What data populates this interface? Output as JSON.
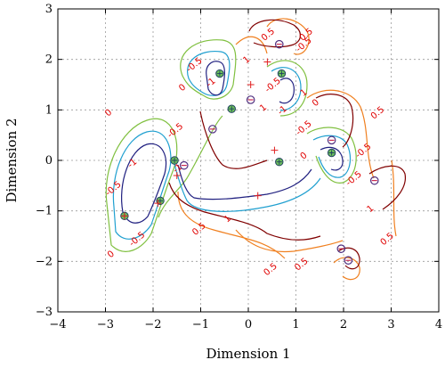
{
  "chart_data": {
    "type": "contour",
    "title": "",
    "xlabel": "Dimension 1",
    "ylabel": "Dimension 2",
    "xlim": [
      -4,
      4
    ],
    "ylim": [
      -3,
      3
    ],
    "xticks": [
      -4,
      -3,
      -2,
      -1,
      0,
      1,
      2,
      3,
      4
    ],
    "yticks": [
      -3,
      -2,
      -1,
      0,
      1,
      2,
      3
    ],
    "grid": true,
    "contour_levels": [
      {
        "level": "1",
        "color": "#800000"
      },
      {
        "level": "0.5",
        "color": "#f08020"
      },
      {
        "level": "0",
        "color": "#80c040"
      },
      {
        "level": "-0.5",
        "color": "#20a0d0"
      },
      {
        "level": "-1",
        "color": "#202080"
      }
    ],
    "contour_labels": [
      {
        "text": "0",
        "x": -2.9,
        "y": 0.9,
        "color": "#e00000"
      },
      {
        "text": "-1",
        "x": -2.4,
        "y": -0.1,
        "color": "#e00000"
      },
      {
        "text": "-0.5",
        "x": -2.8,
        "y": -0.6,
        "color": "#e00000"
      },
      {
        "text": "-0.5",
        "x": -2.3,
        "y": -1.6,
        "color": "#e00000"
      },
      {
        "text": "0",
        "x": -2.85,
        "y": -1.9,
        "color": "#e00000"
      },
      {
        "text": "0.5",
        "x": -1.0,
        "y": -1.4,
        "color": "#e00000"
      },
      {
        "text": "1",
        "x": -0.4,
        "y": -1.2,
        "color": "#e00000"
      },
      {
        "text": "0.5",
        "x": 0.5,
        "y": -2.2,
        "color": "#e00000"
      },
      {
        "text": "-0.5",
        "x": -1.1,
        "y": 1.85,
        "color": "#e00000"
      },
      {
        "text": "-1",
        "x": -0.75,
        "y": 1.5,
        "color": "#e00000"
      },
      {
        "text": "0",
        "x": -1.35,
        "y": 1.4,
        "color": "#e00000"
      },
      {
        "text": "1",
        "x": 0.0,
        "y": 1.95,
        "color": "#e00000"
      },
      {
        "text": "0.5",
        "x": 0.45,
        "y": 2.45,
        "color": "#e00000"
      },
      {
        "text": "0.5",
        "x": 1.25,
        "y": 2.45,
        "color": "#e00000"
      },
      {
        "text": "-0.5",
        "x": 1.2,
        "y": 2.25,
        "color": "#e00000"
      },
      {
        "text": "1",
        "x": 1.2,
        "y": 1.3,
        "color": "#e00000"
      },
      {
        "text": "0.5",
        "x": 2.75,
        "y": 0.9,
        "color": "#e00000"
      },
      {
        "text": "-0.5",
        "x": 1.2,
        "y": 0.6,
        "color": "#e00000"
      },
      {
        "text": "0",
        "x": 1.45,
        "y": 1.1,
        "color": "#e00000"
      },
      {
        "text": "-0.5",
        "x": 2.25,
        "y": -0.4,
        "color": "#e00000"
      },
      {
        "text": "-0.5",
        "x": 2.45,
        "y": 0.15,
        "color": "#e00000"
      },
      {
        "text": "1",
        "x": 2.6,
        "y": -1.0,
        "color": "#e00000"
      },
      {
        "text": "0.5",
        "x": 2.95,
        "y": -1.6,
        "color": "#e00000"
      },
      {
        "text": "0.5",
        "x": 1.15,
        "y": -2.1,
        "color": "#e00000"
      },
      {
        "text": "-0.5",
        "x": -1.5,
        "y": 0.55,
        "color": "#e00000"
      },
      {
        "text": "-1",
        "x": -1.45,
        "y": -0.2,
        "color": "#e00000"
      },
      {
        "text": "1",
        "x": 0.35,
        "y": 1.0,
        "color": "#e00000"
      },
      {
        "text": "-1",
        "x": 0.75,
        "y": 0.95,
        "color": "#e00000"
      },
      {
        "text": "-0.5",
        "x": 0.55,
        "y": 1.45,
        "color": "#e00000"
      },
      {
        "text": "0",
        "x": 1.2,
        "y": 0.05,
        "color": "#e00000"
      }
    ],
    "support_vectors_class1": [
      {
        "x": -2.6,
        "y": -1.1
      },
      {
        "x": -1.85,
        "y": -0.8
      },
      {
        "x": -1.55,
        "y": 0.0
      },
      {
        "x": -0.6,
        "y": 1.72
      },
      {
        "x": -0.35,
        "y": 1.02
      },
      {
        "x": 0.7,
        "y": 1.72
      },
      {
        "x": 0.65,
        "y": -0.03
      },
      {
        "x": 1.75,
        "y": 0.15
      }
    ],
    "support_vectors_class2": [
      {
        "x": 0.65,
        "y": 2.3
      },
      {
        "x": 0.05,
        "y": 1.2
      },
      {
        "x": -0.75,
        "y": 0.62
      },
      {
        "x": -1.35,
        "y": -0.1
      },
      {
        "x": 1.75,
        "y": 0.4
      },
      {
        "x": 2.65,
        "y": -0.4
      },
      {
        "x": 1.95,
        "y": -1.75
      },
      {
        "x": 2.1,
        "y": -1.98
      }
    ],
    "plus_markers": [
      {
        "x": -2.6,
        "y": -1.1
      },
      {
        "x": -1.9,
        "y": -0.85
      },
      {
        "x": -1.5,
        "y": -0.3
      },
      {
        "x": 0.2,
        "y": -0.7
      },
      {
        "x": 0.55,
        "y": 0.2
      },
      {
        "x": 0.05,
        "y": 1.5
      },
      {
        "x": 0.4,
        "y": 1.95
      }
    ]
  }
}
